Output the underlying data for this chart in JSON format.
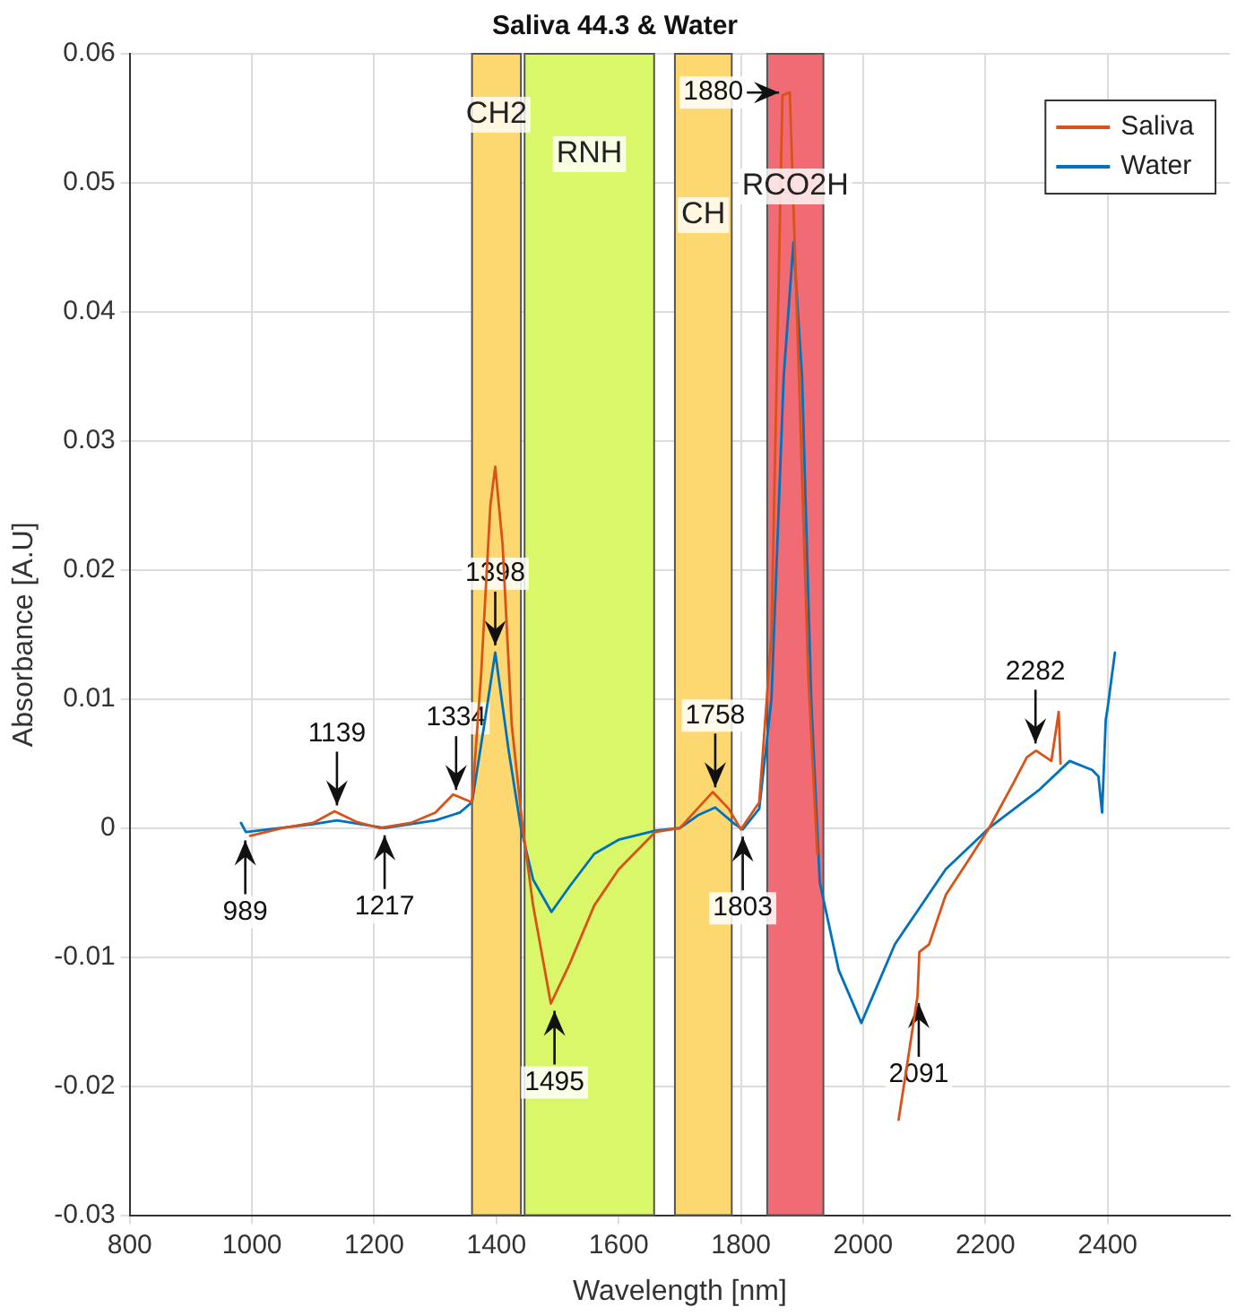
{
  "chart_data": {
    "type": "line",
    "title": "Saliva 44.3 & Water",
    "xlabel": "Wavelength [nm]",
    "ylabel": "Absorbance [A.U]",
    "xlim": [
      800,
      2600
    ],
    "xticks": [
      800,
      1000,
      1200,
      1400,
      1600,
      1800,
      2000,
      2200,
      2400
    ],
    "ylim": [
      -0.03,
      0.06
    ],
    "yticks": [
      -0.03,
      -0.02,
      -0.01,
      0,
      0.01,
      0.02,
      0.03,
      0.04,
      0.05,
      0.06
    ],
    "grid": true,
    "legend": "top right",
    "marker": "none",
    "line_style": "solid",
    "series": [
      {
        "name": "Saliva",
        "color": "#d95319",
        "x": [
          997,
          1050,
          1100,
          1135,
          1170,
          1209,
          1260,
          1300,
          1329,
          1360,
          1375,
          1390,
          1398,
          1410,
          1425,
          1443,
          1460,
          1489,
          1520,
          1560,
          1600,
          1660,
          1700,
          1754,
          1780,
          1800,
          1830,
          1850,
          1868,
          1880,
          1895,
          1910,
          1925,
          1990,
          2058,
          2074,
          2089,
          2092,
          2108,
          2135,
          2175,
          2206,
          2246,
          2268,
          2283,
          2308,
          2320,
          2323
        ],
        "values": [
          -0.0006,
          0,
          0.0004,
          0.0013,
          0.0005,
          0,
          0.0004,
          0.0012,
          0.0026,
          0.002,
          0.012,
          0.025,
          0.028,
          0.022,
          0.008,
          0,
          -0.006,
          -0.0136,
          -0.0105,
          -0.006,
          -0.0032,
          -0.0003,
          0,
          0.0028,
          0.0015,
          -0.0001,
          0.002,
          0.015,
          0.0568,
          0.057,
          0.035,
          0.012,
          -0.002,
          null,
          -0.0226,
          -0.0177,
          -0.013,
          -0.0096,
          -0.009,
          -0.0052,
          -0.0023,
          0,
          0.0035,
          0.0055,
          0.006,
          0.0052,
          0.009,
          0.005
        ]
      },
      {
        "name": "Water",
        "color": "#0072bd",
        "x": [
          982,
          990,
          1100,
          1139,
          1217,
          1300,
          1340,
          1360,
          1380,
          1398,
          1420,
          1440,
          1460,
          1490,
          1520,
          1560,
          1600,
          1660,
          1700,
          1730,
          1758,
          1790,
          1803,
          1830,
          1850,
          1870,
          1886,
          1900,
          1915,
          1929,
          1960,
          1997,
          2052,
          2135,
          2206,
          2289,
          2338,
          2375,
          2385,
          2391,
          2397,
          2400,
          2412
        ],
        "values": [
          0.0004,
          -0.0003,
          0.0003,
          0.0006,
          0,
          0.0006,
          0.0012,
          0.002,
          0.008,
          0.0136,
          0.006,
          0,
          -0.004,
          -0.0065,
          -0.0045,
          -0.002,
          -0.0009,
          -0.0002,
          0,
          0.001,
          0.0016,
          0.0003,
          -0.0001,
          0.0015,
          0.01,
          0.035,
          0.0454,
          0.035,
          0.01,
          -0.0042,
          -0.011,
          -0.0151,
          -0.009,
          -0.0032,
          0,
          0.003,
          0.0052,
          0.0045,
          0.004,
          0.0012,
          0.0084,
          0.0093,
          0.0136
        ]
      }
    ],
    "bands": [
      {
        "axis": "x",
        "from": 1360,
        "to": 1440,
        "label": "CH2",
        "color": "#fdd870"
      },
      {
        "axis": "x",
        "from": 1446,
        "to": 1658,
        "label": "RNH",
        "color": "#daf76a"
      },
      {
        "axis": "x",
        "from": 1692,
        "to": 1785,
        "label": "CH",
        "color": "#fdd870"
      },
      {
        "axis": "x",
        "from": 1843,
        "to": 1935,
        "label": "RCO2H",
        "color": "#f06b74"
      }
    ],
    "annotations": [
      {
        "text": "989",
        "x": 989,
        "y": -0.0004
      },
      {
        "text": "1139",
        "x": 1139,
        "y": 0.0012
      },
      {
        "text": "1217",
        "x": 1217,
        "y": 0
      },
      {
        "text": "1334",
        "x": 1334,
        "y": 0.0024
      },
      {
        "text": "1398",
        "x": 1398,
        "y": 0.0136
      },
      {
        "text": "1495",
        "x": 1495,
        "y": -0.0136
      },
      {
        "text": "1758",
        "x": 1758,
        "y": 0.0026
      },
      {
        "text": "1803",
        "x": 1803,
        "y": -0.0001
      },
      {
        "text": "1880",
        "x": 1880,
        "y": 0.057
      },
      {
        "text": "2091",
        "x": 2091,
        "y": -0.013
      },
      {
        "text": "2282",
        "x": 2282,
        "y": 0.006
      }
    ]
  }
}
